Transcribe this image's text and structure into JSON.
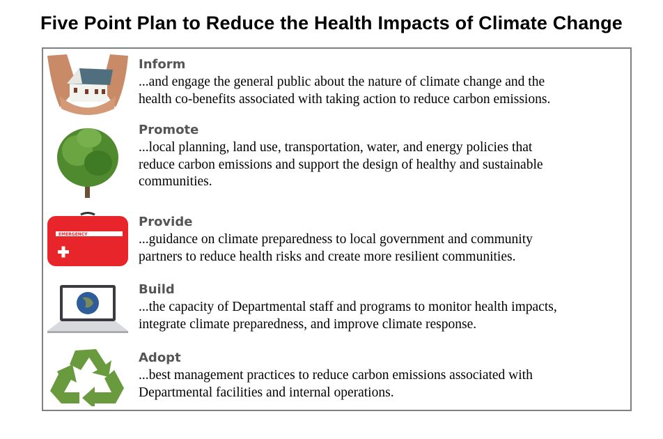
{
  "title": "Five Point Plan to Reduce the Health Impacts of Climate Change",
  "items": [
    {
      "heading": "Inform",
      "icon": "house-in-hands-icon",
      "lines": [
        "...and engage the general public about the nature of climate change and the",
        "health co-benefits associated with taking action to reduce carbon emissions."
      ]
    },
    {
      "heading": "Promote",
      "icon": "tree-icon",
      "lines": [
        "...local planning, land use, transportation, water, and energy policies that",
        "reduce carbon emissions and support the design of healthy and sustainable",
        "communities."
      ]
    },
    {
      "heading": "Provide",
      "icon": "emergency-kit-icon",
      "badge": "EMERGENCY",
      "lines": [
        "...guidance on climate preparedness to local government and community",
        "partners to reduce health risks and create more resilient communities."
      ]
    },
    {
      "heading": "Build",
      "icon": "laptop-globe-icon",
      "lines": [
        "...the capacity of Departmental staff and programs to monitor health impacts,",
        "integrate climate preparedness, and improve climate response."
      ]
    },
    {
      "heading": "Adopt",
      "icon": "recycle-icon",
      "lines": [
        "...best management practices to reduce carbon emissions associated with",
        "Departmental facilities and internal operations."
      ]
    }
  ],
  "colors": {
    "heading": "#555555",
    "border": "#7f7f7f",
    "recycle": "#6a9a3e",
    "kit": "#e8252a"
  }
}
